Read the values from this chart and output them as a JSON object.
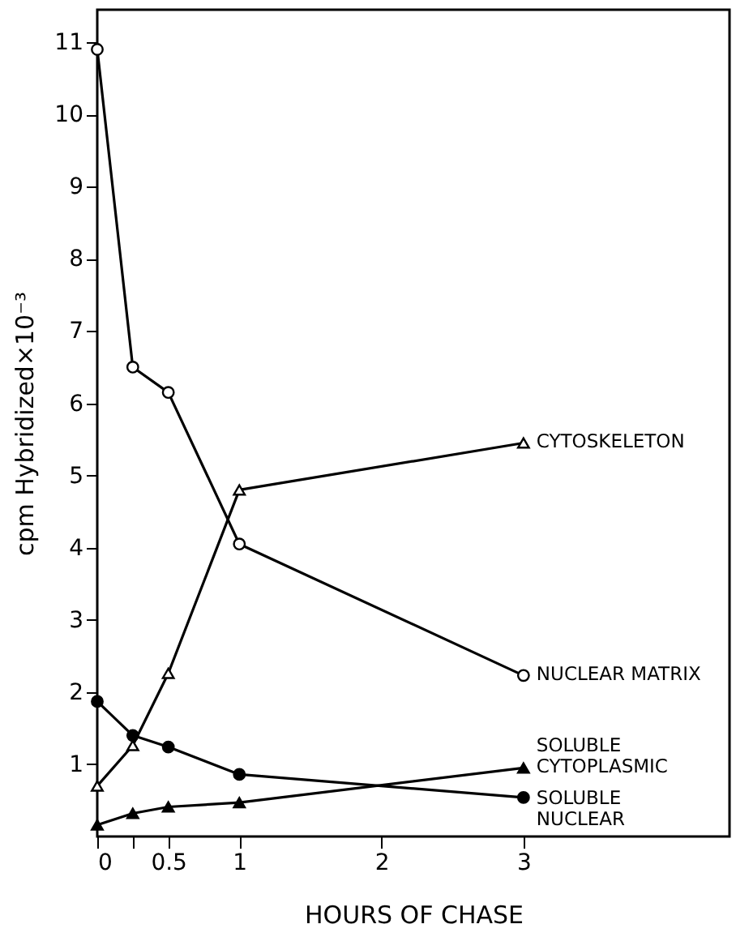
{
  "chart_data": {
    "type": "line",
    "xlabel": "HOURS OF CHASE",
    "ylabel": "cpm Hybridized×10⁻³",
    "x": [
      0,
      0.25,
      0.5,
      1,
      3
    ],
    "xlim": [
      0,
      4.45
    ],
    "ylim": [
      0,
      11.45
    ],
    "xticks": [
      0,
      {
        "value": 0.25,
        "label": null
      },
      {
        "value": 0.5,
        "label": "0.5"
      },
      1,
      2,
      3
    ],
    "yticks": [
      1,
      2,
      3,
      4,
      5,
      6,
      7,
      8,
      9,
      10,
      11
    ],
    "grid": false,
    "line_style": "solid",
    "series": [
      {
        "name": "NUCLEAR MATRIX",
        "color": "#000000",
        "marker": "circle",
        "colors": [
          "#ffffff",
          "#ffffff",
          "#ffffff",
          "#ffffff",
          "#ffffff"
        ],
        "values": [
          10.9,
          6.5,
          6.15,
          4.05,
          2.23
        ]
      },
      {
        "name": "CYTOSKELETON",
        "color": "#000000",
        "marker": "triangle",
        "colors": [
          "#ffffff",
          "#ffffff",
          "#ffffff",
          "#ffffff",
          "#ffffff"
        ],
        "values": [
          0.7,
          1.26,
          2.26,
          4.8,
          5.45
        ]
      },
      {
        "name": "SOLUBLE\nCYTOPLASMIC",
        "color": "#000000",
        "marker": "triangle",
        "values": [
          0.16,
          0.32,
          0.41,
          0.47,
          0.95
        ]
      },
      {
        "name": "SOLUBLE\nNUCLEAR",
        "color": "#000000",
        "marker": "circle",
        "values": [
          1.87,
          1.4,
          1.24,
          0.86,
          0.54
        ]
      }
    ]
  }
}
